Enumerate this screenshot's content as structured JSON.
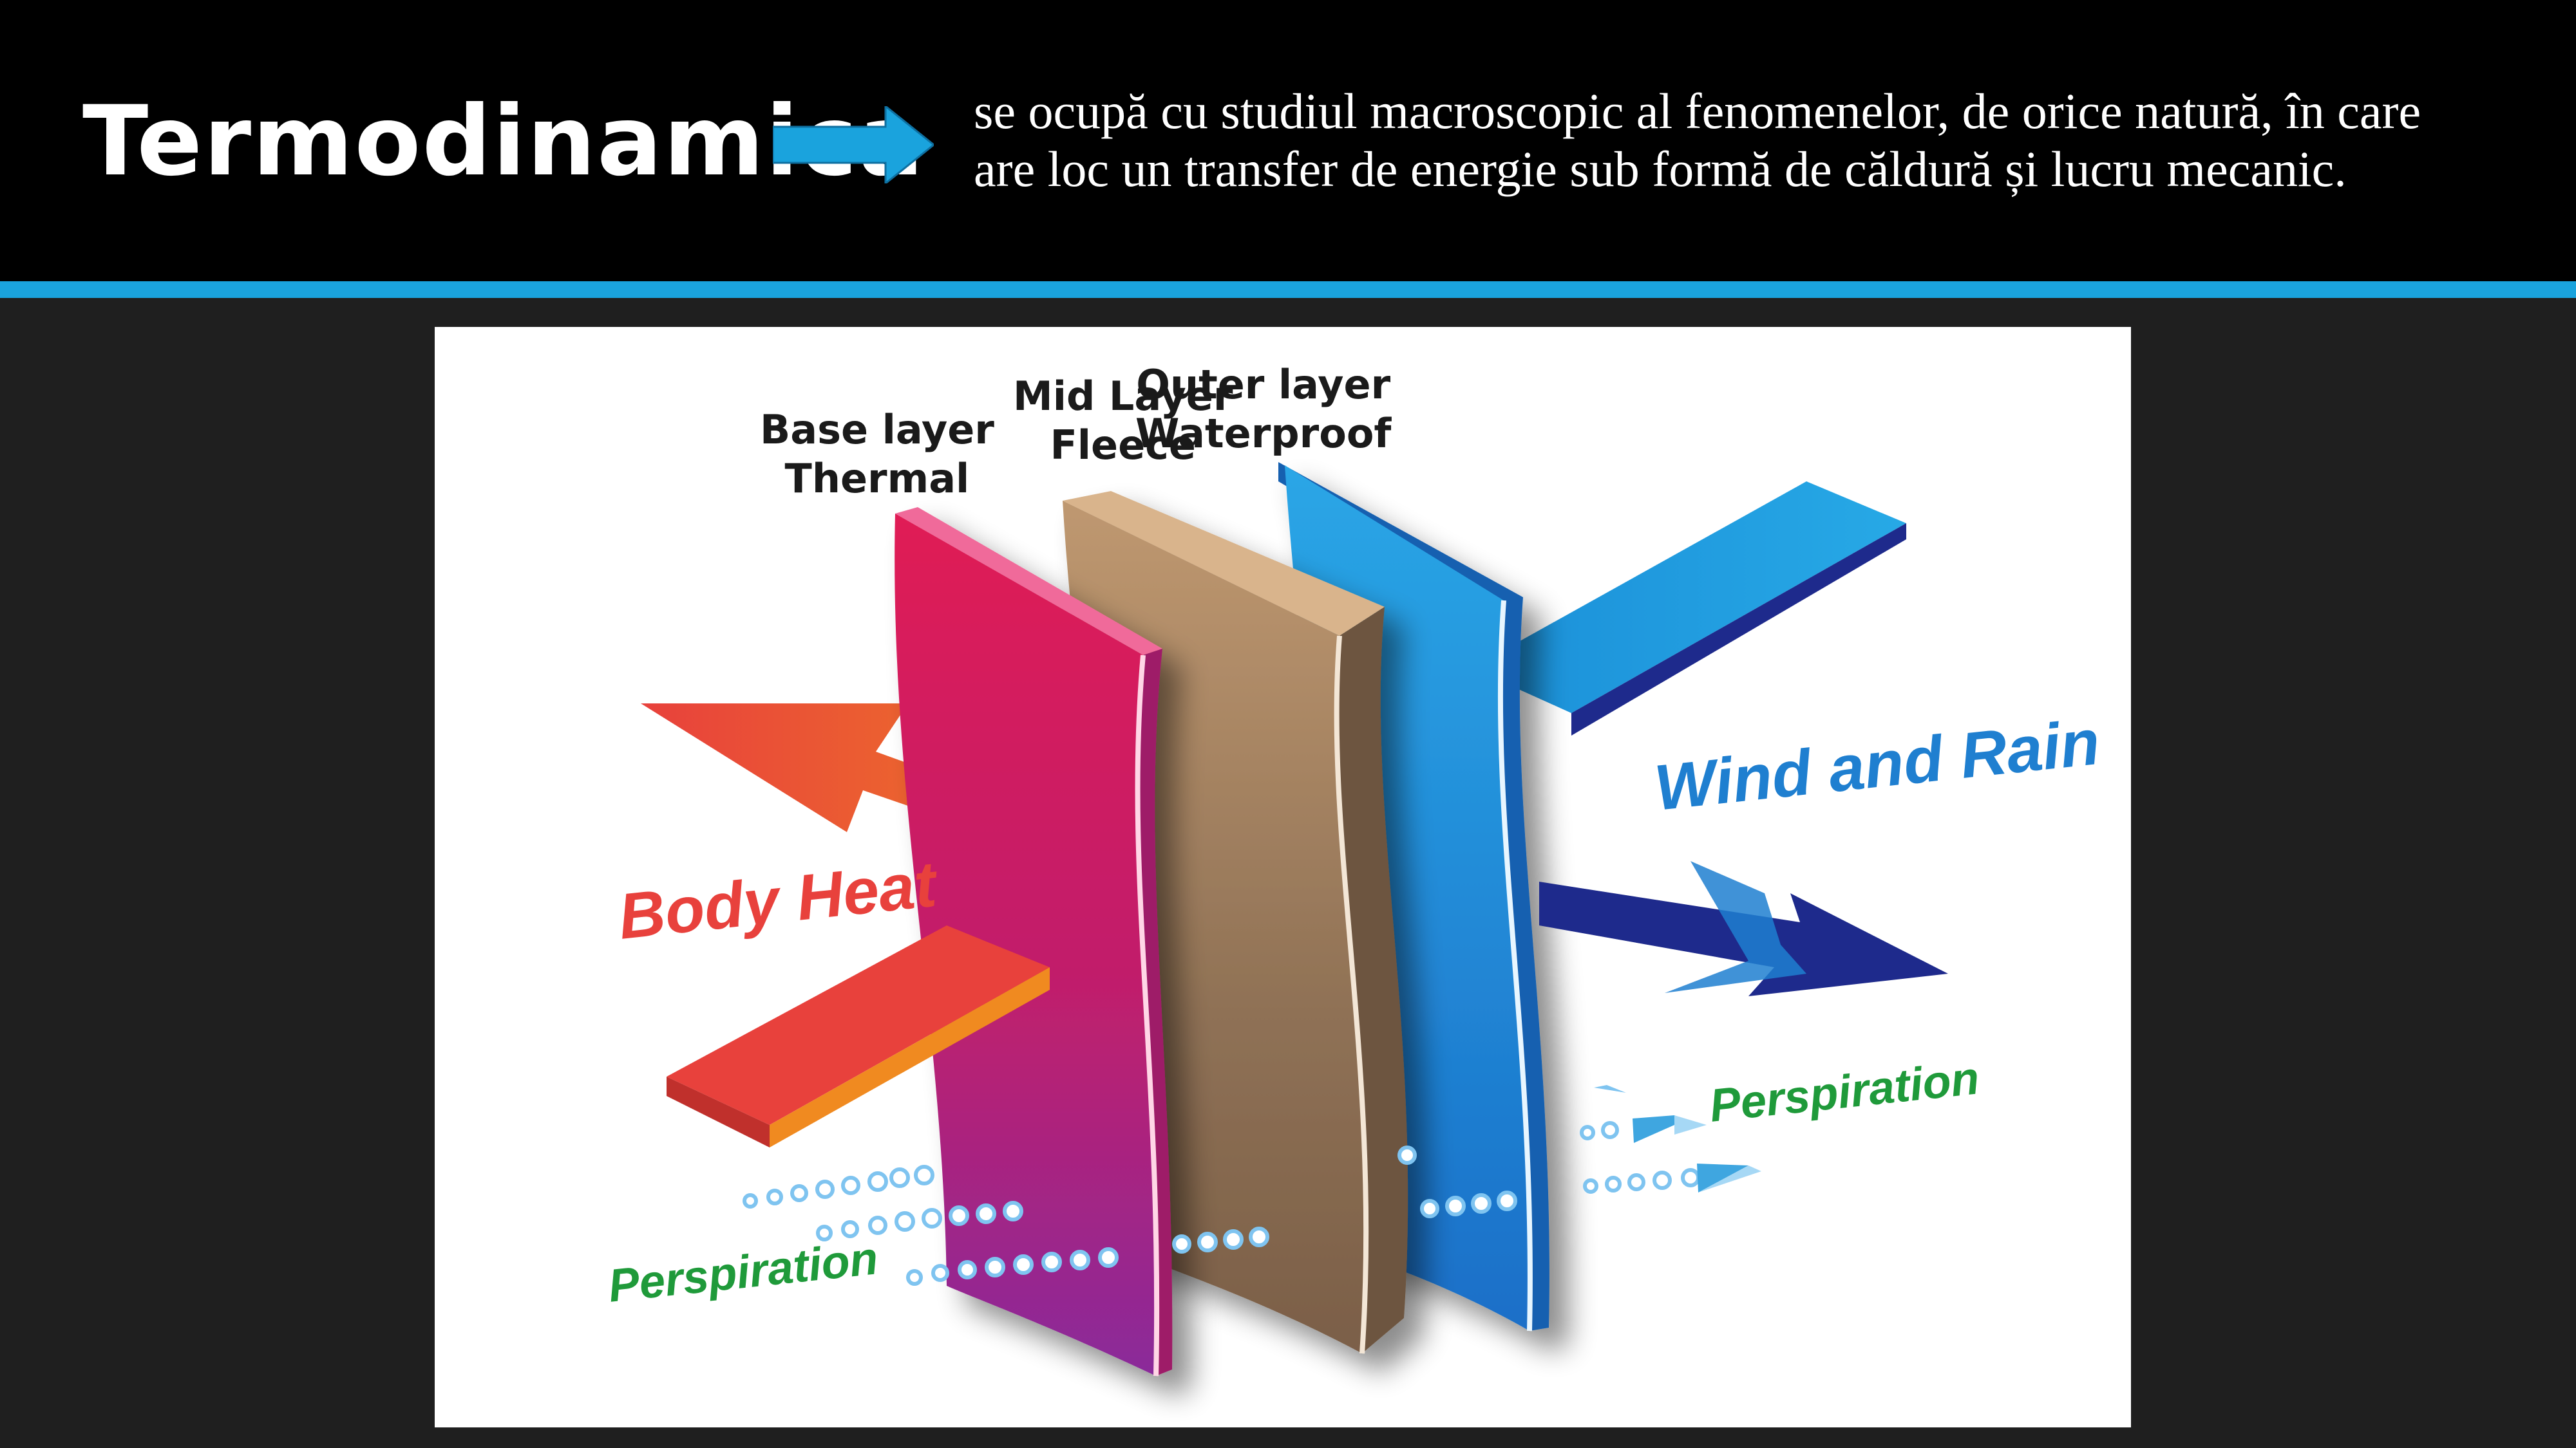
{
  "header": {
    "title": "Termodinamica",
    "definition_line1": "se ocupă cu studiul macroscopic al fenomenelor, de orice natură, în care",
    "definition_line2": "are loc un transfer de energie sub formă de căldură și lucru mecanic."
  },
  "icons": {
    "header_arrow": "right-arrow-icon"
  },
  "colors": {
    "header_bg": "#000000",
    "slide_bg": "#1f1f1f",
    "accent": "#1aa3dd",
    "base_layer": "#d81b5a",
    "mid_layer": "#a88360",
    "outer_layer": "#1e8fd8",
    "body_heat": "#e8413c",
    "wind_rain": "#1f7fd0",
    "perspiration": "#1f9a3a"
  },
  "diagram": {
    "base_layer_line1": "Base layer",
    "base_layer_line2": "Thermal",
    "mid_layer_line1": "Mid Layer",
    "mid_layer_line2": "Fleece",
    "outer_layer_line1": "Outer layer",
    "outer_layer_line2": "Waterproof",
    "body_heat": "Body Heat",
    "wind_and_rain": "Wind and Rain",
    "perspiration_left": "Perspiration",
    "perspiration_right": "Perspiration"
  }
}
